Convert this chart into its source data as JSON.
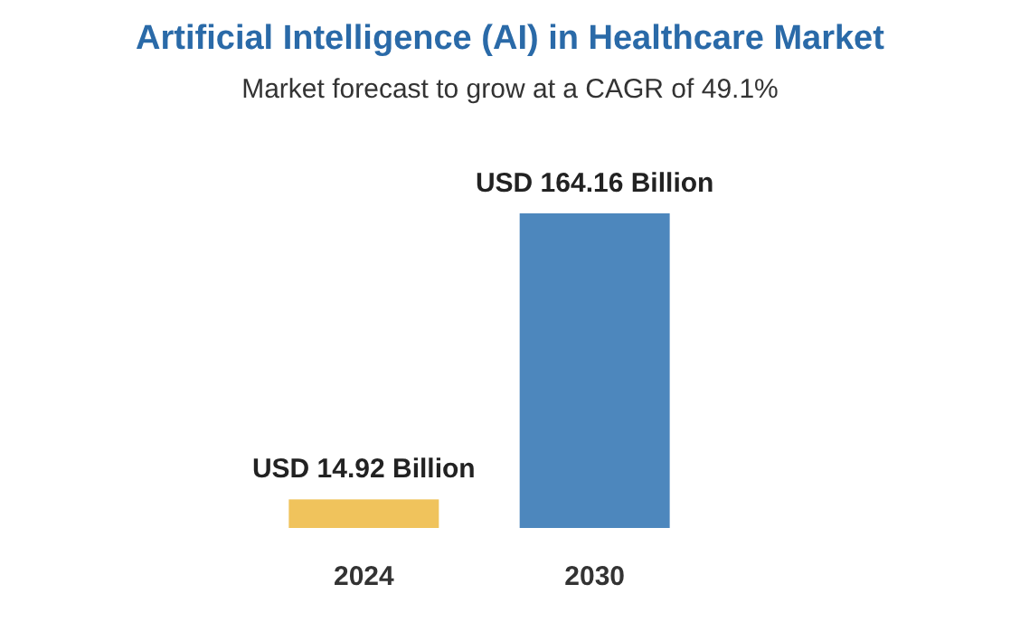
{
  "chart_data": {
    "type": "bar",
    "title": "Artificial Intelligence (AI) in Healthcare Market",
    "subtitle": "Market forecast to grow at a CAGR of 49.1%",
    "categories": [
      "2024",
      "2030"
    ],
    "values": [
      14.92,
      164.16
    ],
    "colors": [
      "#f0c35c",
      "#4d87bd"
    ],
    "value_labels": [
      "USD 14.92 Billion",
      "USD 164.16 Billion"
    ]
  }
}
